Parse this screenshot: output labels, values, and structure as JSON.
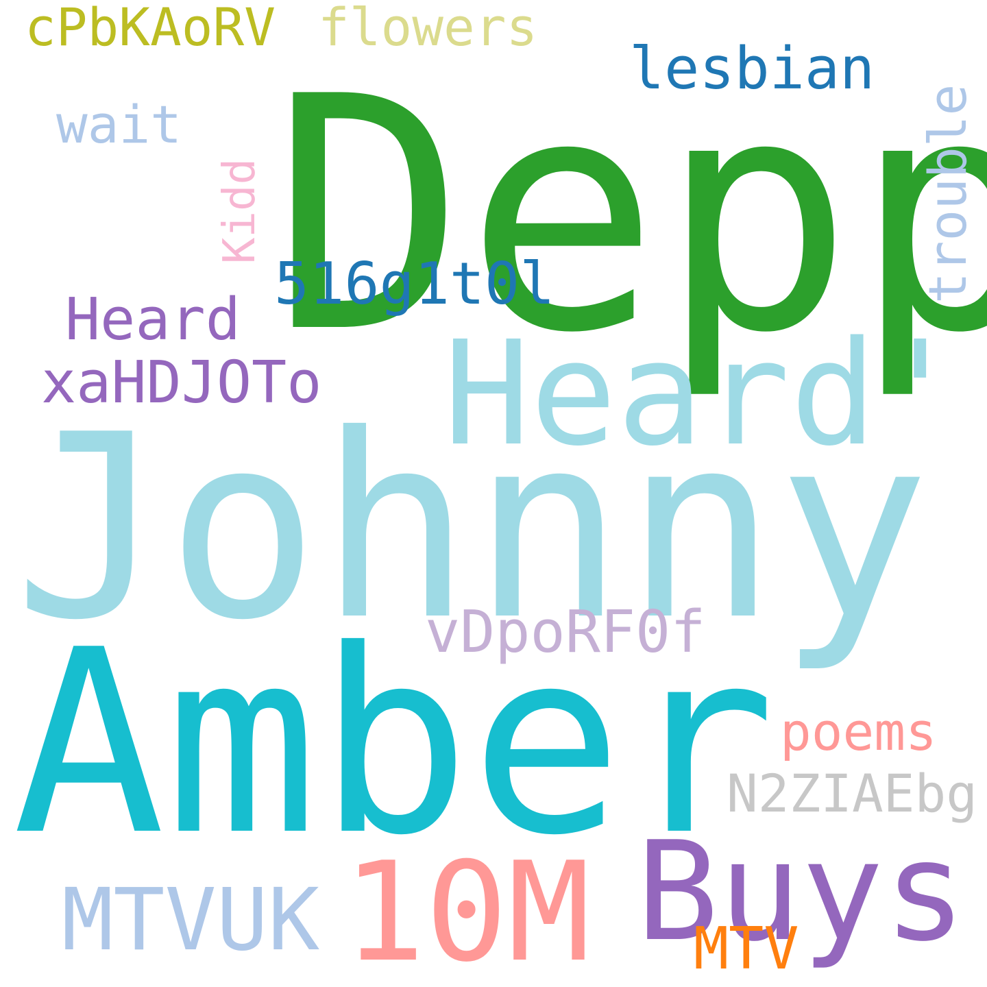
{
  "word_cloud": {
    "words": [
      {
        "id": "johnny",
        "text": "Johnny",
        "color": "#9edae5"
      },
      {
        "id": "amber",
        "text": "Amber",
        "color": "#17becf"
      },
      {
        "id": "depp",
        "text": "Depp",
        "color": "#2ca02c"
      },
      {
        "id": "heard-apos",
        "text": "Heard'",
        "color": "#9edae5"
      },
      {
        "id": "buys",
        "text": "Buys",
        "color": "#9467bd"
      },
      {
        "id": "10m",
        "text": "10M",
        "color": "#ff9896"
      },
      {
        "id": "mtvuk",
        "text": "MTVUK",
        "color": "#aec7e8"
      },
      {
        "id": "vdporf0f",
        "text": "vDpoRF0f",
        "color": "#c5b0d5"
      },
      {
        "id": "heard",
        "text": "Heard",
        "color": "#9467bd"
      },
      {
        "id": "xahdjoto",
        "text": "xaHDJOTo",
        "color": "#9467bd"
      },
      {
        "id": "516g1t0l",
        "text": "516g1t0l",
        "color": "#1f77b4"
      },
      {
        "id": "lesbian",
        "text": "lesbian",
        "color": "#1f77b4"
      },
      {
        "id": "cpbkaorv",
        "text": "cPbKAoRV",
        "color": "#bcbd22"
      },
      {
        "id": "flowers",
        "text": "flowers",
        "color": "#dbdb8d"
      },
      {
        "id": "wait",
        "text": "wait",
        "color": "#aec7e8"
      },
      {
        "id": "kidd",
        "text": "Kidd",
        "color": "#f7b6d2"
      },
      {
        "id": "trouble",
        "text": "trouble",
        "color": "#aec7e8"
      },
      {
        "id": "poems",
        "text": "poems",
        "color": "#ff9896"
      },
      {
        "id": "n2ziaebg",
        "text": "N2ZIAEbg",
        "color": "#c7c7c7"
      },
      {
        "id": "mtv",
        "text": "MTV",
        "color": "#ff7f0e"
      }
    ]
  }
}
